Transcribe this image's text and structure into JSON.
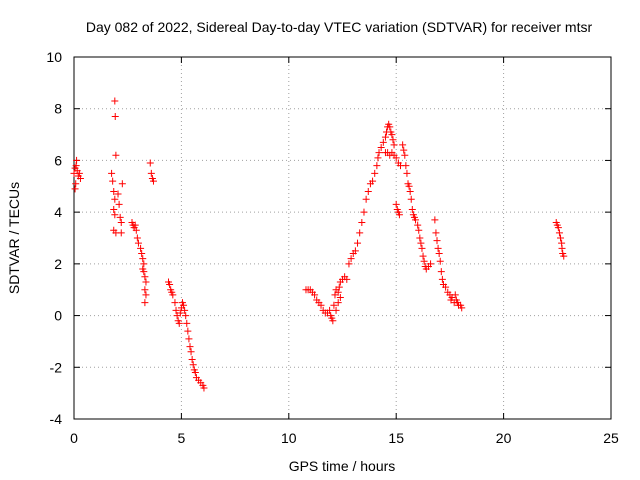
{
  "chart_data": {
    "type": "scatter",
    "title": "Day 082 of 2022, Sidereal Day-to-day VTEC variation (SDTVAR) for receiver mtsr",
    "xlabel": "GPS time / hours",
    "ylabel": "SDTVAR / TECUs",
    "xlim": [
      0,
      25
    ],
    "ylim": [
      -4,
      10
    ],
    "xticks": [
      0,
      5,
      10,
      15,
      20,
      25
    ],
    "yticks": [
      -4,
      -2,
      0,
      2,
      4,
      6,
      8,
      10
    ],
    "grid": true,
    "marker": "+",
    "color": "#ff0000",
    "series": [
      {
        "name": "SDTVAR",
        "segments": [
          [
            [
              0.0,
              5.5
            ],
            [
              0.05,
              5.7
            ],
            [
              0.1,
              5.8
            ],
            [
              0.12,
              6.0
            ],
            [
              0.15,
              5.6
            ],
            [
              0.2,
              5.4
            ],
            [
              0.25,
              5.5
            ],
            [
              0.3,
              5.3
            ],
            [
              0.05,
              4.9
            ],
            [
              0.08,
              5.1
            ]
          ],
          [
            [
              1.75,
              5.5
            ],
            [
              1.8,
              5.2
            ],
            [
              1.85,
              4.8
            ],
            [
              1.9,
              4.5
            ],
            [
              1.85,
              4.1
            ],
            [
              1.9,
              3.9
            ],
            [
              1.85,
              3.3
            ],
            [
              1.95,
              3.2
            ],
            [
              1.9,
              8.3
            ],
            [
              1.92,
              7.7
            ],
            [
              1.95,
              6.2
            ],
            [
              2.05,
              4.7
            ],
            [
              2.1,
              4.3
            ],
            [
              2.15,
              3.8
            ],
            [
              2.2,
              3.6
            ],
            [
              2.25,
              5.1
            ],
            [
              2.2,
              3.2
            ]
          ],
          [
            [
              2.7,
              3.6
            ],
            [
              2.75,
              3.5
            ],
            [
              2.8,
              3.4
            ],
            [
              2.85,
              3.5
            ],
            [
              2.9,
              3.3
            ],
            [
              2.95,
              3.0
            ],
            [
              3.0,
              2.8
            ],
            [
              3.1,
              2.6
            ],
            [
              3.15,
              2.4
            ],
            [
              3.2,
              2.2
            ],
            [
              3.25,
              2.0
            ],
            [
              3.3,
              1.5
            ],
            [
              3.35,
              1.3
            ],
            [
              3.3,
              1.0
            ],
            [
              3.35,
              0.8
            ],
            [
              3.3,
              0.5
            ],
            [
              3.2,
              1.8
            ],
            [
              3.25,
              1.7
            ]
          ],
          [
            [
              3.55,
              5.9
            ],
            [
              3.6,
              5.5
            ],
            [
              3.65,
              5.3
            ],
            [
              3.7,
              5.2
            ]
          ],
          [
            [
              4.4,
              1.3
            ],
            [
              4.45,
              1.2
            ],
            [
              4.5,
              1.0
            ],
            [
              4.55,
              0.9
            ],
            [
              4.6,
              0.8
            ],
            [
              4.7,
              0.5
            ],
            [
              4.75,
              0.2
            ],
            [
              4.8,
              0.0
            ],
            [
              4.85,
              -0.2
            ],
            [
              4.9,
              -0.3
            ],
            [
              4.95,
              0.1
            ],
            [
              5.0,
              0.3
            ],
            [
              5.05,
              0.5
            ],
            [
              5.1,
              0.4
            ],
            [
              5.15,
              0.2
            ],
            [
              5.2,
              0.0
            ],
            [
              5.25,
              -0.3
            ],
            [
              5.3,
              -0.6
            ],
            [
              5.35,
              -0.9
            ],
            [
              5.4,
              -1.2
            ],
            [
              5.45,
              -1.4
            ],
            [
              5.5,
              -1.7
            ],
            [
              5.55,
              -1.9
            ],
            [
              5.6,
              -2.1
            ],
            [
              5.65,
              -2.2
            ],
            [
              5.7,
              -2.4
            ],
            [
              5.8,
              -2.5
            ],
            [
              5.9,
              -2.6
            ],
            [
              6.0,
              -2.7
            ],
            [
              6.05,
              -2.8
            ]
          ],
          [
            [
              10.8,
              1.0
            ],
            [
              10.9,
              1.0
            ],
            [
              11.0,
              1.0
            ],
            [
              11.1,
              0.9
            ],
            [
              11.2,
              0.8
            ],
            [
              11.3,
              0.6
            ],
            [
              11.4,
              0.5
            ],
            [
              11.5,
              0.4
            ],
            [
              11.6,
              0.2
            ],
            [
              11.7,
              0.1
            ],
            [
              11.8,
              0.1
            ],
            [
              11.9,
              0.2
            ],
            [
              11.95,
              0.0
            ],
            [
              12.0,
              -0.1
            ],
            [
              12.05,
              -0.2
            ],
            [
              12.1,
              0.4
            ],
            [
              12.15,
              0.8
            ],
            [
              12.2,
              1.0
            ],
            [
              12.3,
              0.9
            ],
            [
              12.35,
              1.1
            ],
            [
              12.4,
              1.3
            ],
            [
              12.5,
              1.4
            ],
            [
              12.6,
              1.5
            ],
            [
              12.7,
              1.4
            ],
            [
              12.2,
              0.2
            ],
            [
              12.3,
              0.5
            ],
            [
              12.4,
              0.7
            ]
          ],
          [
            [
              12.8,
              2.0
            ],
            [
              12.9,
              2.2
            ],
            [
              13.0,
              2.4
            ],
            [
              13.1,
              2.5
            ],
            [
              13.2,
              2.8
            ],
            [
              13.3,
              3.2
            ],
            [
              13.4,
              3.6
            ],
            [
              13.5,
              4.0
            ],
            [
              13.6,
              4.5
            ],
            [
              13.7,
              4.8
            ],
            [
              13.8,
              5.1
            ],
            [
              13.9,
              5.2
            ],
            [
              14.0,
              5.5
            ],
            [
              14.1,
              5.8
            ],
            [
              14.15,
              6.1
            ],
            [
              14.2,
              6.3
            ],
            [
              14.3,
              6.5
            ],
            [
              14.4,
              6.7
            ],
            [
              14.5,
              6.9
            ],
            [
              14.55,
              7.1
            ],
            [
              14.6,
              7.3
            ],
            [
              14.65,
              7.4
            ],
            [
              14.7,
              7.3
            ],
            [
              14.75,
              7.1
            ],
            [
              14.8,
              7.0
            ],
            [
              14.85,
              6.8
            ],
            [
              14.9,
              6.6
            ],
            [
              14.5,
              6.3
            ],
            [
              14.6,
              6.3
            ],
            [
              14.7,
              6.2
            ],
            [
              14.8,
              6.3
            ],
            [
              14.9,
              6.2
            ],
            [
              15.0,
              6.1
            ],
            [
              15.1,
              5.9
            ],
            [
              15.2,
              5.8
            ]
          ],
          [
            [
              15.0,
              4.3
            ],
            [
              15.05,
              4.1
            ],
            [
              15.1,
              4.0
            ],
            [
              15.15,
              3.9
            ]
          ],
          [
            [
              15.3,
              6.6
            ],
            [
              15.35,
              6.4
            ],
            [
              15.4,
              6.2
            ],
            [
              15.45,
              5.8
            ],
            [
              15.5,
              5.5
            ],
            [
              15.55,
              5.1
            ],
            [
              15.6,
              5.0
            ],
            [
              15.65,
              4.8
            ],
            [
              15.7,
              4.5
            ],
            [
              15.75,
              4.1
            ],
            [
              15.8,
              3.9
            ],
            [
              15.85,
              3.8
            ],
            [
              15.9,
              3.7
            ],
            [
              16.0,
              3.5
            ],
            [
              16.05,
              3.3
            ],
            [
              16.1,
              3.0
            ],
            [
              16.15,
              2.8
            ],
            [
              16.2,
              2.6
            ],
            [
              16.25,
              2.3
            ],
            [
              16.3,
              2.1
            ],
            [
              16.35,
              1.9
            ],
            [
              16.4,
              1.8
            ],
            [
              16.5,
              1.9
            ],
            [
              16.6,
              2.0
            ]
          ],
          [
            [
              16.8,
              3.7
            ],
            [
              16.85,
              3.2
            ],
            [
              16.9,
              2.9
            ],
            [
              16.95,
              2.6
            ],
            [
              17.0,
              2.4
            ],
            [
              17.05,
              2.1
            ],
            [
              17.1,
              1.7
            ],
            [
              17.15,
              1.4
            ],
            [
              17.2,
              1.2
            ],
            [
              17.3,
              1.1
            ],
            [
              17.4,
              0.9
            ],
            [
              17.5,
              0.8
            ],
            [
              17.55,
              0.6
            ],
            [
              17.6,
              0.7
            ],
            [
              17.7,
              0.5
            ],
            [
              17.75,
              0.8
            ],
            [
              17.8,
              0.6
            ],
            [
              17.85,
              0.5
            ],
            [
              17.9,
              0.4
            ],
            [
              18.0,
              0.4
            ],
            [
              18.05,
              0.3
            ]
          ],
          [
            [
              22.45,
              3.6
            ],
            [
              22.5,
              3.5
            ],
            [
              22.55,
              3.4
            ],
            [
              22.6,
              3.2
            ],
            [
              22.65,
              3.0
            ],
            [
              22.7,
              2.8
            ],
            [
              22.72,
              2.6
            ],
            [
              22.75,
              2.4
            ],
            [
              22.8,
              2.3
            ]
          ]
        ]
      }
    ]
  }
}
